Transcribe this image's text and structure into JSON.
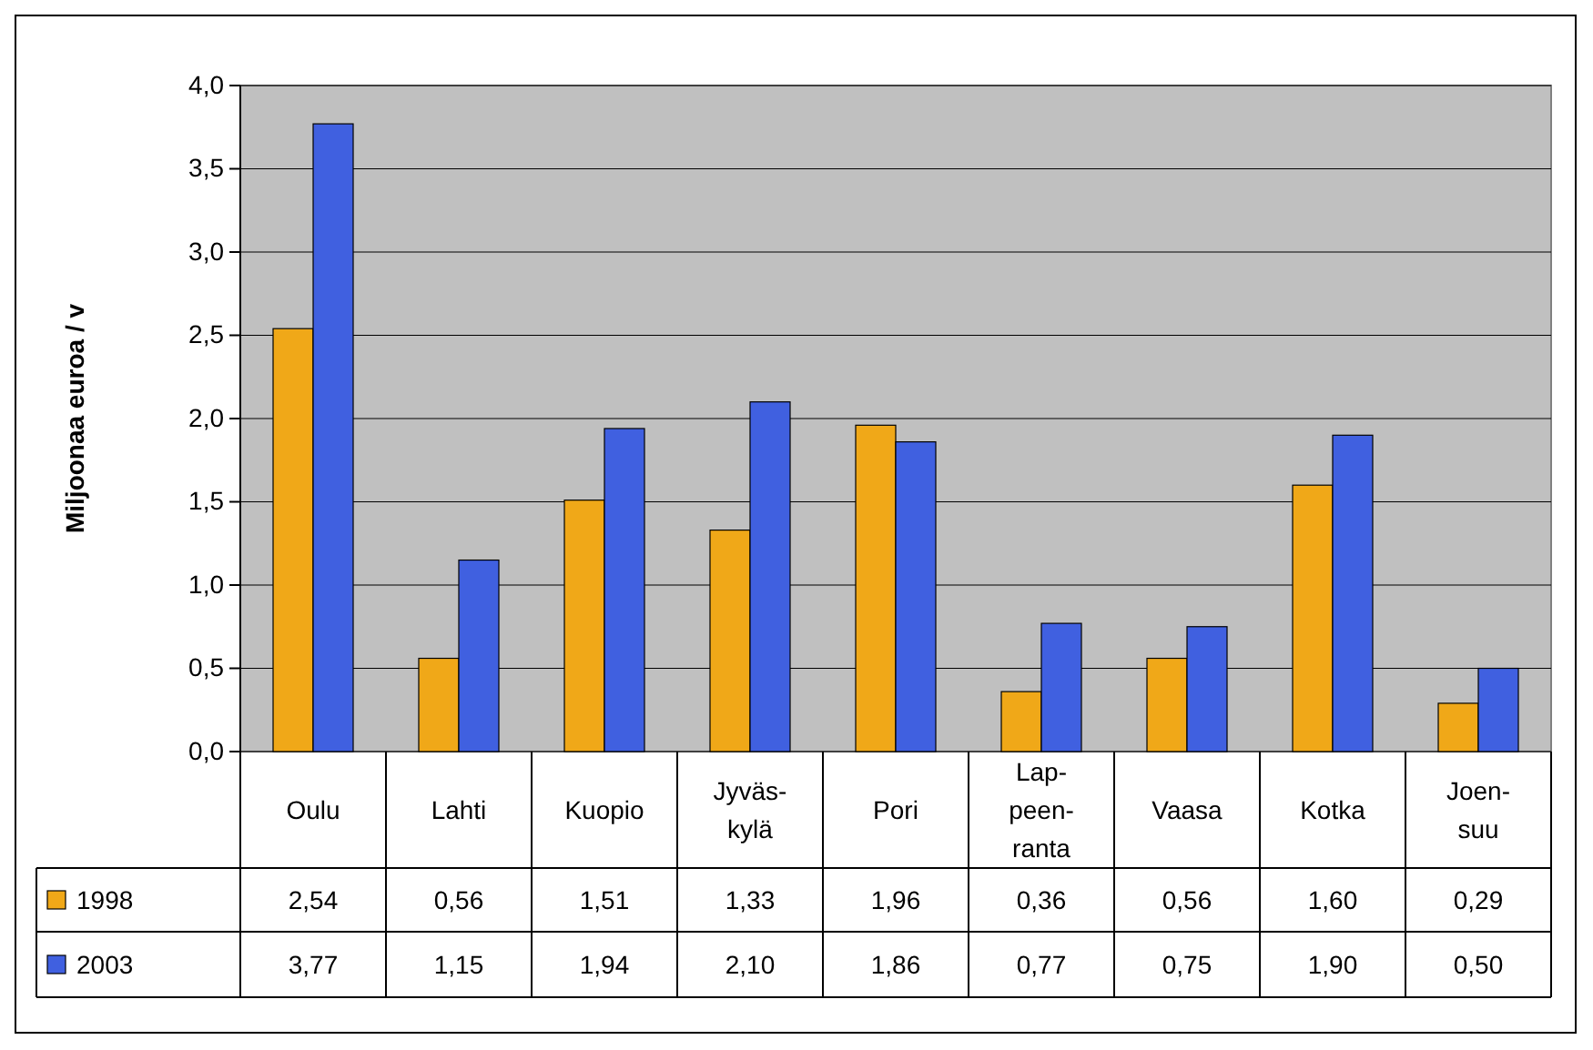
{
  "chart_data": {
    "type": "bar",
    "ylabel": "Miljoonaa euroa / v",
    "categories": [
      "Oulu",
      "Lahti",
      "Kuopio",
      "Jyväs-kylä",
      "Pori",
      "Lap-peen-ranta",
      "Vaasa",
      "Kotka",
      "Joen-suu"
    ],
    "series": [
      {
        "name": "1998",
        "color": "#f0a818",
        "values": [
          2.54,
          0.56,
          1.51,
          1.33,
          1.96,
          0.36,
          0.56,
          1.6,
          0.29
        ],
        "value_labels": [
          "2,54",
          "0,56",
          "1,51",
          "1,33",
          "1,96",
          "0,36",
          "0,56",
          "1,60",
          "0,29"
        ]
      },
      {
        "name": "2003",
        "color": "#4060e0",
        "values": [
          3.77,
          1.15,
          1.94,
          2.1,
          1.86,
          0.77,
          0.75,
          1.9,
          0.5
        ],
        "value_labels": [
          "3,77",
          "1,15",
          "1,94",
          "2,10",
          "1,86",
          "0,77",
          "0,75",
          "1,90",
          "0,50"
        ]
      }
    ],
    "ylim": [
      0,
      4
    ],
    "yticks": [
      {
        "value": 0,
        "label": "0,0"
      },
      {
        "value": 0.5,
        "label": "0,5"
      },
      {
        "value": 1,
        "label": "1,0"
      },
      {
        "value": 1.5,
        "label": "1,5"
      },
      {
        "value": 2,
        "label": "2,0"
      },
      {
        "value": 2.5,
        "label": "2,5"
      },
      {
        "value": 3,
        "label": "3,0"
      },
      {
        "value": 3.5,
        "label": "3,5"
      },
      {
        "value": 4,
        "label": "4,0"
      }
    ],
    "grid": "y",
    "legend": "bottom left"
  }
}
